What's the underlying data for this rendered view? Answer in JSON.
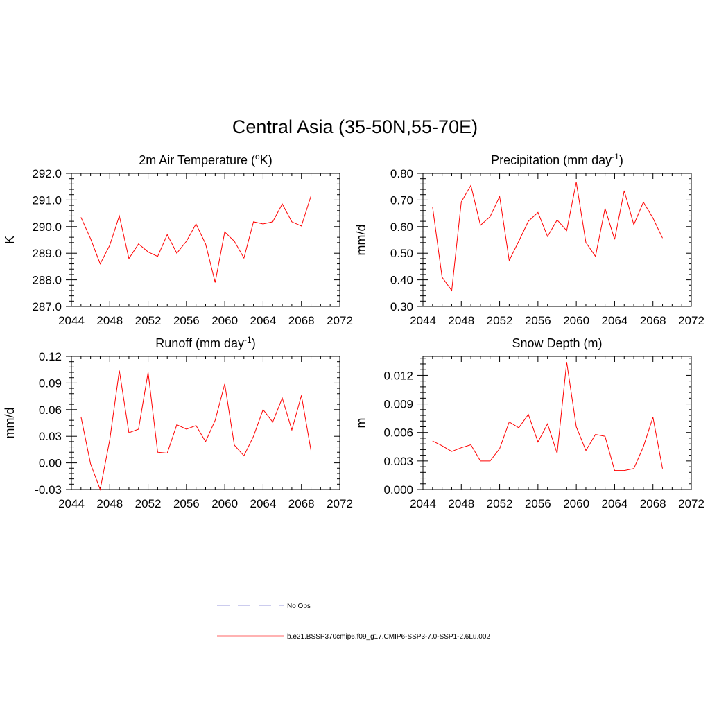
{
  "page": {
    "title": "Central Asia (35-50N,55-70E)"
  },
  "legend": [
    {
      "label": "No Obs",
      "color": "#9999dd",
      "style": "dashed"
    },
    {
      "label": "b.e21.BSSP370cmip6.f09_g17.CMIP6-SSP3-7.0-SSP1-2.6Lu.002",
      "color": "#ff0000",
      "style": "solid"
    }
  ],
  "chart_data": [
    {
      "type": "line",
      "title": "2m Air Temperature (",
      "title_sup": "o",
      "title_suffix": "K)",
      "ylabel": "K",
      "xlim": [
        2044,
        2072
      ],
      "ylim": [
        287.0,
        292.0
      ],
      "xticks": [
        "2044",
        "2048",
        "2052",
        "2056",
        "2060",
        "2064",
        "2068",
        "2072"
      ],
      "yticks": [
        "287.0",
        "288.0",
        "289.0",
        "290.0",
        "291.0",
        "292.0"
      ],
      "x": [
        2045,
        2046,
        2047,
        2048,
        2049,
        2050,
        2051,
        2052,
        2053,
        2054,
        2055,
        2056,
        2057,
        2058,
        2059,
        2060,
        2061,
        2062,
        2063,
        2064,
        2065,
        2066,
        2067,
        2068,
        2069
      ],
      "series": [
        {
          "color": "#ff0000",
          "values": [
            290.35,
            289.55,
            288.6,
            289.3,
            290.4,
            288.8,
            289.35,
            289.05,
            288.88,
            289.7,
            289.0,
            289.45,
            290.1,
            289.35,
            287.9,
            289.8,
            289.45,
            288.82,
            290.18,
            290.1,
            290.18,
            290.85,
            290.18,
            290.02,
            291.15
          ]
        }
      ]
    },
    {
      "type": "line",
      "title": "Precipitation (mm day",
      "title_sup": "-1",
      "title_suffix": ")",
      "ylabel": "mm/d",
      "xlim": [
        2044,
        2072
      ],
      "ylim": [
        0.3,
        0.8
      ],
      "xticks": [
        "2044",
        "2048",
        "2052",
        "2056",
        "2060",
        "2064",
        "2068",
        "2072"
      ],
      "yticks": [
        "0.30",
        "0.40",
        "0.50",
        "0.60",
        "0.70",
        "0.80"
      ],
      "x": [
        2045,
        2046,
        2047,
        2048,
        2049,
        2050,
        2051,
        2052,
        2053,
        2054,
        2055,
        2056,
        2057,
        2058,
        2059,
        2060,
        2061,
        2062,
        2063,
        2064,
        2065,
        2066,
        2067,
        2068,
        2069
      ],
      "series": [
        {
          "color": "#ff0000",
          "values": [
            0.675,
            0.41,
            0.36,
            0.693,
            0.755,
            0.605,
            0.637,
            0.713,
            0.473,
            0.545,
            0.62,
            0.653,
            0.563,
            0.625,
            0.585,
            0.767,
            0.54,
            0.488,
            0.668,
            0.552,
            0.735,
            0.607,
            0.692,
            0.632,
            0.557
          ]
        }
      ]
    },
    {
      "type": "line",
      "title": "Runoff (mm day",
      "title_sup": "-1",
      "title_suffix": ")",
      "ylabel": "mm/d",
      "xlim": [
        2044,
        2072
      ],
      "ylim": [
        -0.03,
        0.12
      ],
      "xticks": [
        "2044",
        "2048",
        "2052",
        "2056",
        "2060",
        "2064",
        "2068",
        "2072"
      ],
      "yticks": [
        "-0.03",
        "0.00",
        "0.03",
        "0.06",
        "0.09",
        "0.12"
      ],
      "x": [
        2045,
        2046,
        2047,
        2048,
        2049,
        2050,
        2051,
        2052,
        2053,
        2054,
        2055,
        2056,
        2057,
        2058,
        2059,
        2060,
        2061,
        2062,
        2063,
        2064,
        2065,
        2066,
        2067,
        2068,
        2069
      ],
      "series": [
        {
          "color": "#ff0000",
          "values": [
            0.052,
            -0.001,
            -0.03,
            0.026,
            0.104,
            0.034,
            0.038,
            0.102,
            0.012,
            0.011,
            0.043,
            0.038,
            0.042,
            0.024,
            0.048,
            0.089,
            0.02,
            0.008,
            0.03,
            0.06,
            0.046,
            0.073,
            0.037,
            0.076,
            0.014
          ]
        }
      ]
    },
    {
      "type": "line",
      "title": "Snow Depth (m)",
      "title_sup": "",
      "title_suffix": "",
      "ylabel": "m",
      "xlim": [
        2044,
        2072
      ],
      "ylim": [
        0.0,
        0.014
      ],
      "xticks": [
        "2044",
        "2048",
        "2052",
        "2056",
        "2060",
        "2064",
        "2068",
        "2072"
      ],
      "yticks": [
        "0.000",
        "0.003",
        "0.006",
        "0.009",
        "0.012"
      ],
      "x": [
        2045,
        2046,
        2047,
        2048,
        2049,
        2050,
        2051,
        2052,
        2053,
        2054,
        2055,
        2056,
        2057,
        2058,
        2059,
        2060,
        2061,
        2062,
        2063,
        2064,
        2065,
        2066,
        2067,
        2068,
        2069
      ],
      "series": [
        {
          "color": "#ff0000",
          "values": [
            0.0051,
            0.0046,
            0.004,
            0.0044,
            0.0047,
            0.003,
            0.003,
            0.0043,
            0.0071,
            0.0065,
            0.0079,
            0.005,
            0.0069,
            0.0038,
            0.0134,
            0.0066,
            0.0041,
            0.0058,
            0.0056,
            0.002,
            0.002,
            0.0022,
            0.0045,
            0.0076,
            0.0022
          ]
        }
      ]
    }
  ]
}
